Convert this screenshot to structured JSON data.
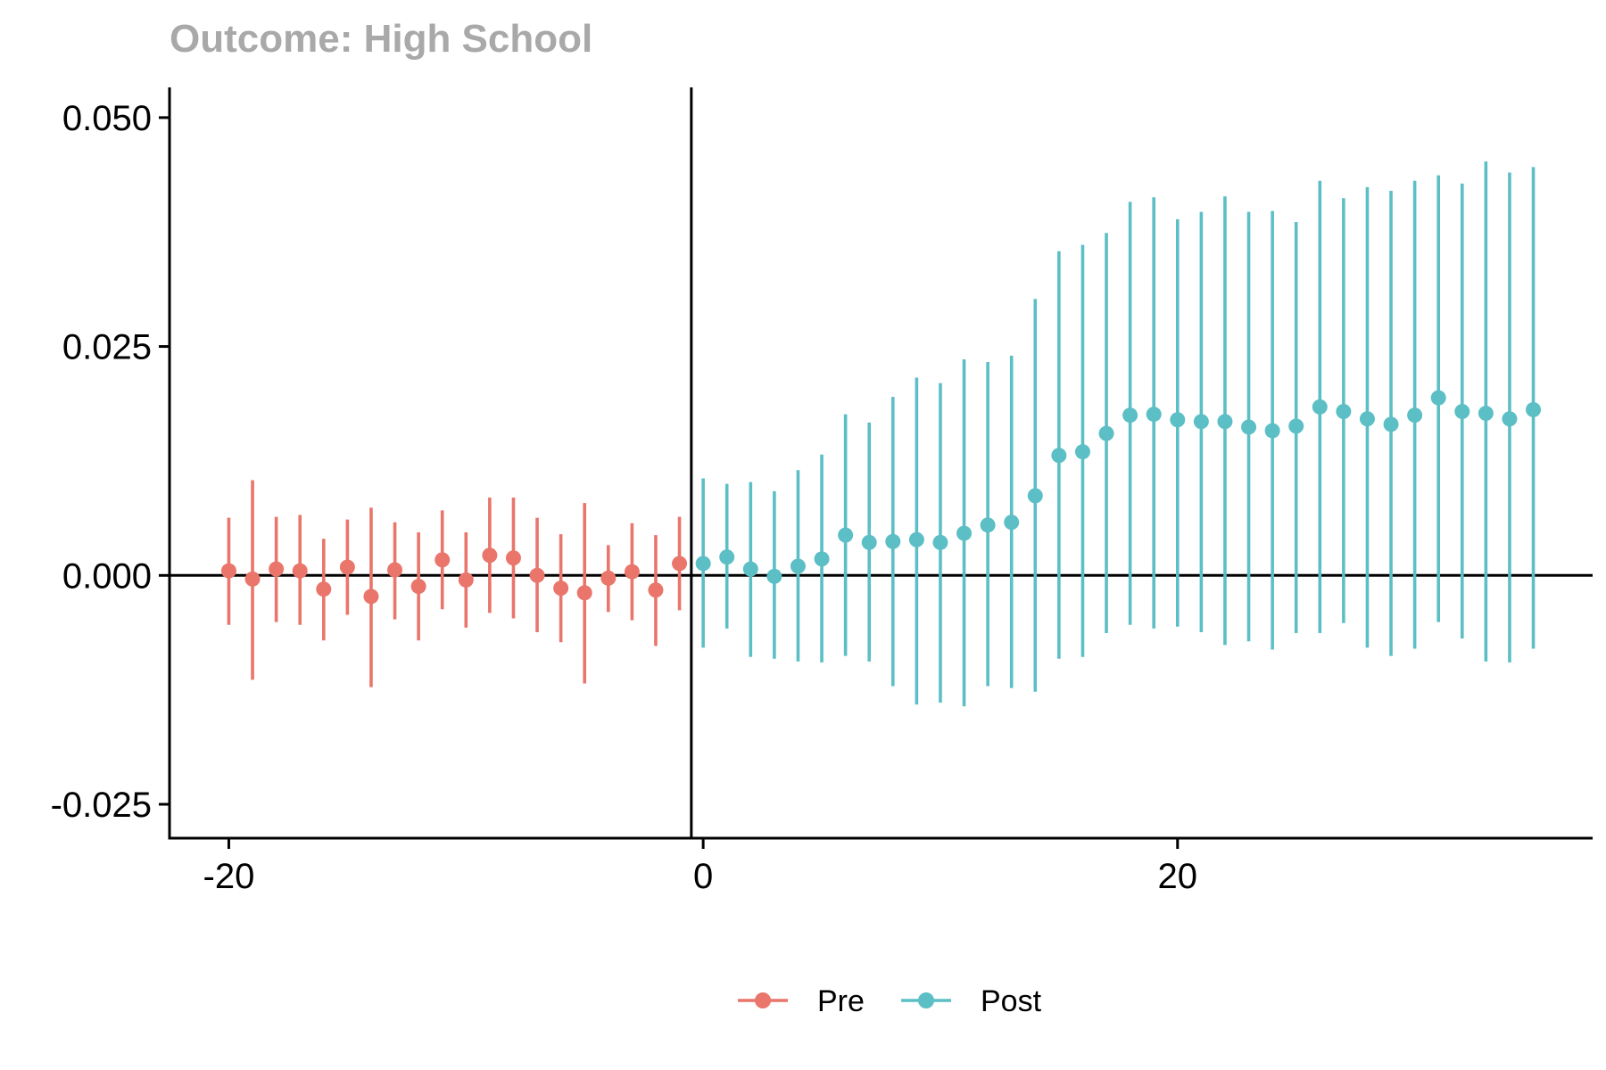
{
  "chart_data": {
    "type": "scatter",
    "title": "Outcome: High School",
    "xlabel": "",
    "ylabel": "",
    "xlim": [
      -22.5,
      37.5
    ],
    "ylim": [
      -0.0287,
      0.0533
    ],
    "x_ticks": [
      -20,
      0,
      20
    ],
    "x_tick_labels": [
      "-20",
      "0",
      "20"
    ],
    "y_ticks": [
      -0.025,
      0,
      0.025,
      0.05
    ],
    "y_tick_labels": [
      "-0.025",
      "0.000",
      "0.025",
      "0.050"
    ],
    "reference_lines": {
      "x": -0.5,
      "y": 0
    },
    "grid": false,
    "legend_position": "bottom",
    "series": [
      {
        "name": "Pre",
        "color": "#E9756B",
        "x": [
          -20,
          -19,
          -18,
          -17,
          -16,
          -15,
          -14,
          -13,
          -12,
          -11,
          -10,
          -9,
          -8,
          -7,
          -6,
          -5,
          -4,
          -3,
          -2,
          -1
        ],
        "y": [
          0.0005,
          -0.0004,
          0.0007,
          0.0005,
          -0.0015,
          0.0009,
          -0.0023,
          0.0006,
          -0.0012,
          0.0017,
          -0.0005,
          0.0022,
          0.0019,
          0.0,
          -0.0014,
          -0.0019,
          -0.0003,
          0.0004,
          -0.0016,
          0.0013
        ],
        "lower": [
          -0.0054,
          -0.0114,
          -0.0051,
          -0.0054,
          -0.0071,
          -0.0043,
          -0.0122,
          -0.0048,
          -0.0071,
          -0.0037,
          -0.0057,
          -0.0041,
          -0.0047,
          -0.0062,
          -0.0073,
          -0.0118,
          -0.004,
          -0.0049,
          -0.0077,
          -0.0038
        ],
        "upper": [
          0.0063,
          0.0104,
          0.0064,
          0.0066,
          0.004,
          0.0061,
          0.0074,
          0.0058,
          0.0047,
          0.0071,
          0.0047,
          0.0085,
          0.0085,
          0.0063,
          0.0045,
          0.0079,
          0.0033,
          0.0057,
          0.0044,
          0.0064
        ]
      },
      {
        "name": "Post",
        "color": "#5BBFC5",
        "x": [
          0,
          1,
          2,
          3,
          4,
          5,
          6,
          7,
          8,
          9,
          10,
          11,
          12,
          13,
          14,
          15,
          16,
          17,
          18,
          19,
          20,
          21,
          22,
          23,
          24,
          25,
          26,
          27,
          28,
          29,
          30,
          31,
          32,
          33,
          34,
          35
        ],
        "y": [
          0.0013,
          0.002,
          0.0007,
          -0.0001,
          0.001,
          0.0018,
          0.0044,
          0.0036,
          0.0037,
          0.0039,
          0.0036,
          0.0046,
          0.0055,
          0.0058,
          0.0087,
          0.0131,
          0.0135,
          0.0155,
          0.0175,
          0.0176,
          0.017,
          0.0168,
          0.0168,
          0.0162,
          0.0158,
          0.0163,
          0.0184,
          0.0179,
          0.0171,
          0.0165,
          0.0175,
          0.0194,
          0.0179,
          0.0177,
          0.0171,
          0.0181
        ],
        "lower": [
          -0.0079,
          -0.0058,
          -0.0089,
          -0.0091,
          -0.0094,
          -0.0095,
          -0.0088,
          -0.0094,
          -0.0121,
          -0.0141,
          -0.0139,
          -0.0143,
          -0.0121,
          -0.0123,
          -0.0127,
          -0.0091,
          -0.0089,
          -0.0063,
          -0.0054,
          -0.0058,
          -0.0056,
          -0.0062,
          -0.0076,
          -0.0072,
          -0.0081,
          -0.0063,
          -0.0063,
          -0.0052,
          -0.0079,
          -0.0088,
          -0.008,
          -0.0051,
          -0.0069,
          -0.0094,
          -0.0095,
          -0.008
        ],
        "upper": [
          0.0106,
          0.01,
          0.0102,
          0.0092,
          0.0115,
          0.0132,
          0.0176,
          0.0167,
          0.0195,
          0.0216,
          0.021,
          0.0236,
          0.0233,
          0.024,
          0.0302,
          0.0354,
          0.0361,
          0.0374,
          0.0408,
          0.0413,
          0.0389,
          0.0397,
          0.0414,
          0.0397,
          0.0398,
          0.0386,
          0.0431,
          0.0412,
          0.0424,
          0.042,
          0.0431,
          0.0437,
          0.0428,
          0.0452,
          0.044,
          0.0446
        ]
      }
    ]
  }
}
